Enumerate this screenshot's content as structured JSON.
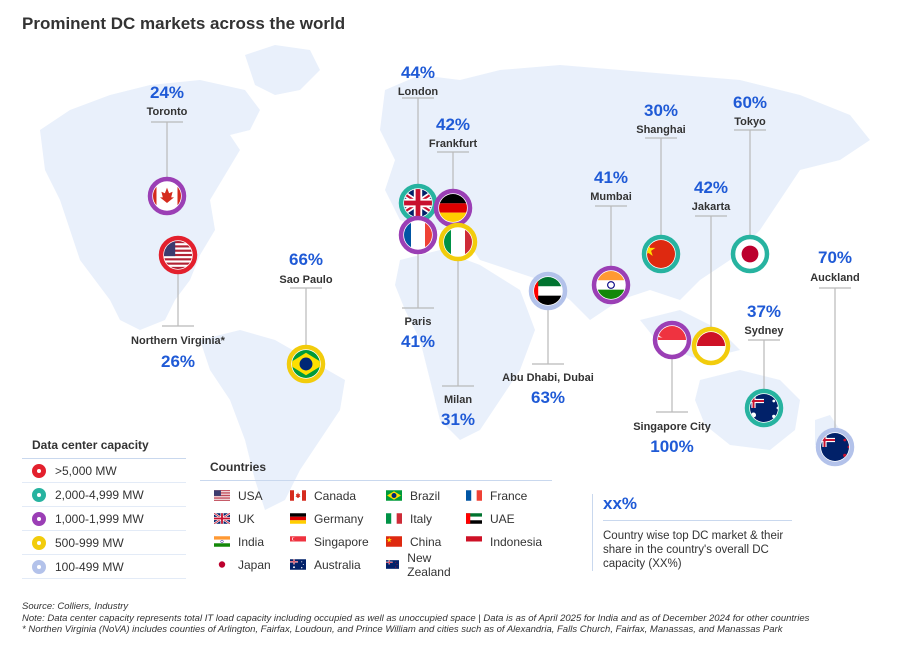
{
  "title": "Prominent DC markets across the world",
  "markets": [
    {
      "city": "Toronto",
      "pct": "24%",
      "tier": "1,000-1,999 MW",
      "flag": "canada-flag-icon"
    },
    {
      "city": "Northern Virginia*",
      "pct": "26%",
      "tier": ">5,000 MW",
      "flag": "usa-flag-icon"
    },
    {
      "city": "Sao Paulo",
      "pct": "66%",
      "tier": "500-999 MW",
      "flag": "brazil-flag-icon"
    },
    {
      "city": "London",
      "pct": "44%",
      "tier": "2,000-4,999 MW",
      "flag": "uk-flag-icon"
    },
    {
      "city": "Frankfurt",
      "pct": "42%",
      "tier": "1,000-1,999 MW",
      "flag": "germany-flag-icon"
    },
    {
      "city": "Paris",
      "pct": "41%",
      "tier": "1,000-1,999 MW",
      "flag": "france-flag-icon"
    },
    {
      "city": "Milan",
      "pct": "31%",
      "tier": "500-999 MW",
      "flag": "italy-flag-icon"
    },
    {
      "city": "Abu Dhabi, Dubai",
      "pct": "63%",
      "tier": "100-499 MW",
      "flag": "uae-flag-icon"
    },
    {
      "city": "Mumbai",
      "pct": "41%",
      "tier": "1,000-1,999 MW",
      "flag": "india-flag-icon"
    },
    {
      "city": "Shanghai",
      "pct": "30%",
      "tier": "2,000-4,999 MW",
      "flag": "china-flag-icon"
    },
    {
      "city": "Jakarta",
      "pct": "42%",
      "tier": "500-999 MW",
      "flag": "indonesia-flag-icon"
    },
    {
      "city": "Singapore City",
      "pct": "100%",
      "tier": "1,000-1,999 MW",
      "flag": "singapore-flag-icon"
    },
    {
      "city": "Tokyo",
      "pct": "60%",
      "tier": "2,000-4,999 MW",
      "flag": "japan-flag-icon"
    },
    {
      "city": "Sydney",
      "pct": "37%",
      "tier": "2,000-4,999 MW",
      "flag": "australia-flag-icon"
    },
    {
      "city": "Auckland",
      "pct": "70%",
      "tier": "100-499 MW",
      "flag": "new-zealand-flag-icon"
    }
  ],
  "capacity_legend": {
    "heading": "Data center capacity",
    "items": [
      {
        "label": ">5,000 MW",
        "color": "#e3202d"
      },
      {
        "label": "2,000-4,999 MW",
        "color": "#27b3a0"
      },
      {
        "label": "1,000-1,999 MW",
        "color": "#9b3fb5"
      },
      {
        "label": "500-999 MW",
        "color": "#f2cc0c"
      },
      {
        "label": "100-499 MW",
        "color": "#b3c2ea"
      }
    ]
  },
  "countries_legend": {
    "heading": "Countries",
    "items": [
      {
        "label": "USA",
        "flag": "usa-flag-icon"
      },
      {
        "label": "Canada",
        "flag": "canada-flag-icon"
      },
      {
        "label": "Brazil",
        "flag": "brazil-flag-icon"
      },
      {
        "label": "France",
        "flag": "france-flag-icon"
      },
      {
        "label": "UK",
        "flag": "uk-flag-icon"
      },
      {
        "label": "Germany",
        "flag": "germany-flag-icon"
      },
      {
        "label": "Italy",
        "flag": "italy-flag-icon"
      },
      {
        "label": "UAE",
        "flag": "uae-flag-icon"
      },
      {
        "label": "India",
        "flag": "india-flag-icon"
      },
      {
        "label": "Singapore",
        "flag": "singapore-flag-icon"
      },
      {
        "label": "China",
        "flag": "china-flag-icon"
      },
      {
        "label": "Indonesia",
        "flag": "indonesia-flag-icon"
      },
      {
        "label": "Japan",
        "flag": "japan-flag-icon"
      },
      {
        "label": "Australia",
        "flag": "australia-flag-icon"
      },
      {
        "label": "New Zealand",
        "flag": "new-zealand-flag-icon"
      }
    ]
  },
  "share_legend": {
    "symbol": "xx%",
    "text": "Country wise top DC market & their share in the country's overall DC capacity (XX%)"
  },
  "notes": {
    "source": "Source: Colliers, Industry",
    "note": "Note: Data center capacity represents total  IT load capacity including occupied as well as unoccupied space | Data is as of April 2025 for India and as of December 2024 for other countries",
    "footnote": "* Northen Virginia (NoVA) includes counties of Arlington, Fairfax, Loudoun, and Prince William and cities such as of Alexandria, Falls Church, Fairfax, Manassas, and Manassas Park"
  },
  "colors": {
    "accent_blue": "#1f5ad6",
    "map_land": "#e9f0fb",
    "line": "#b9b9b9"
  }
}
